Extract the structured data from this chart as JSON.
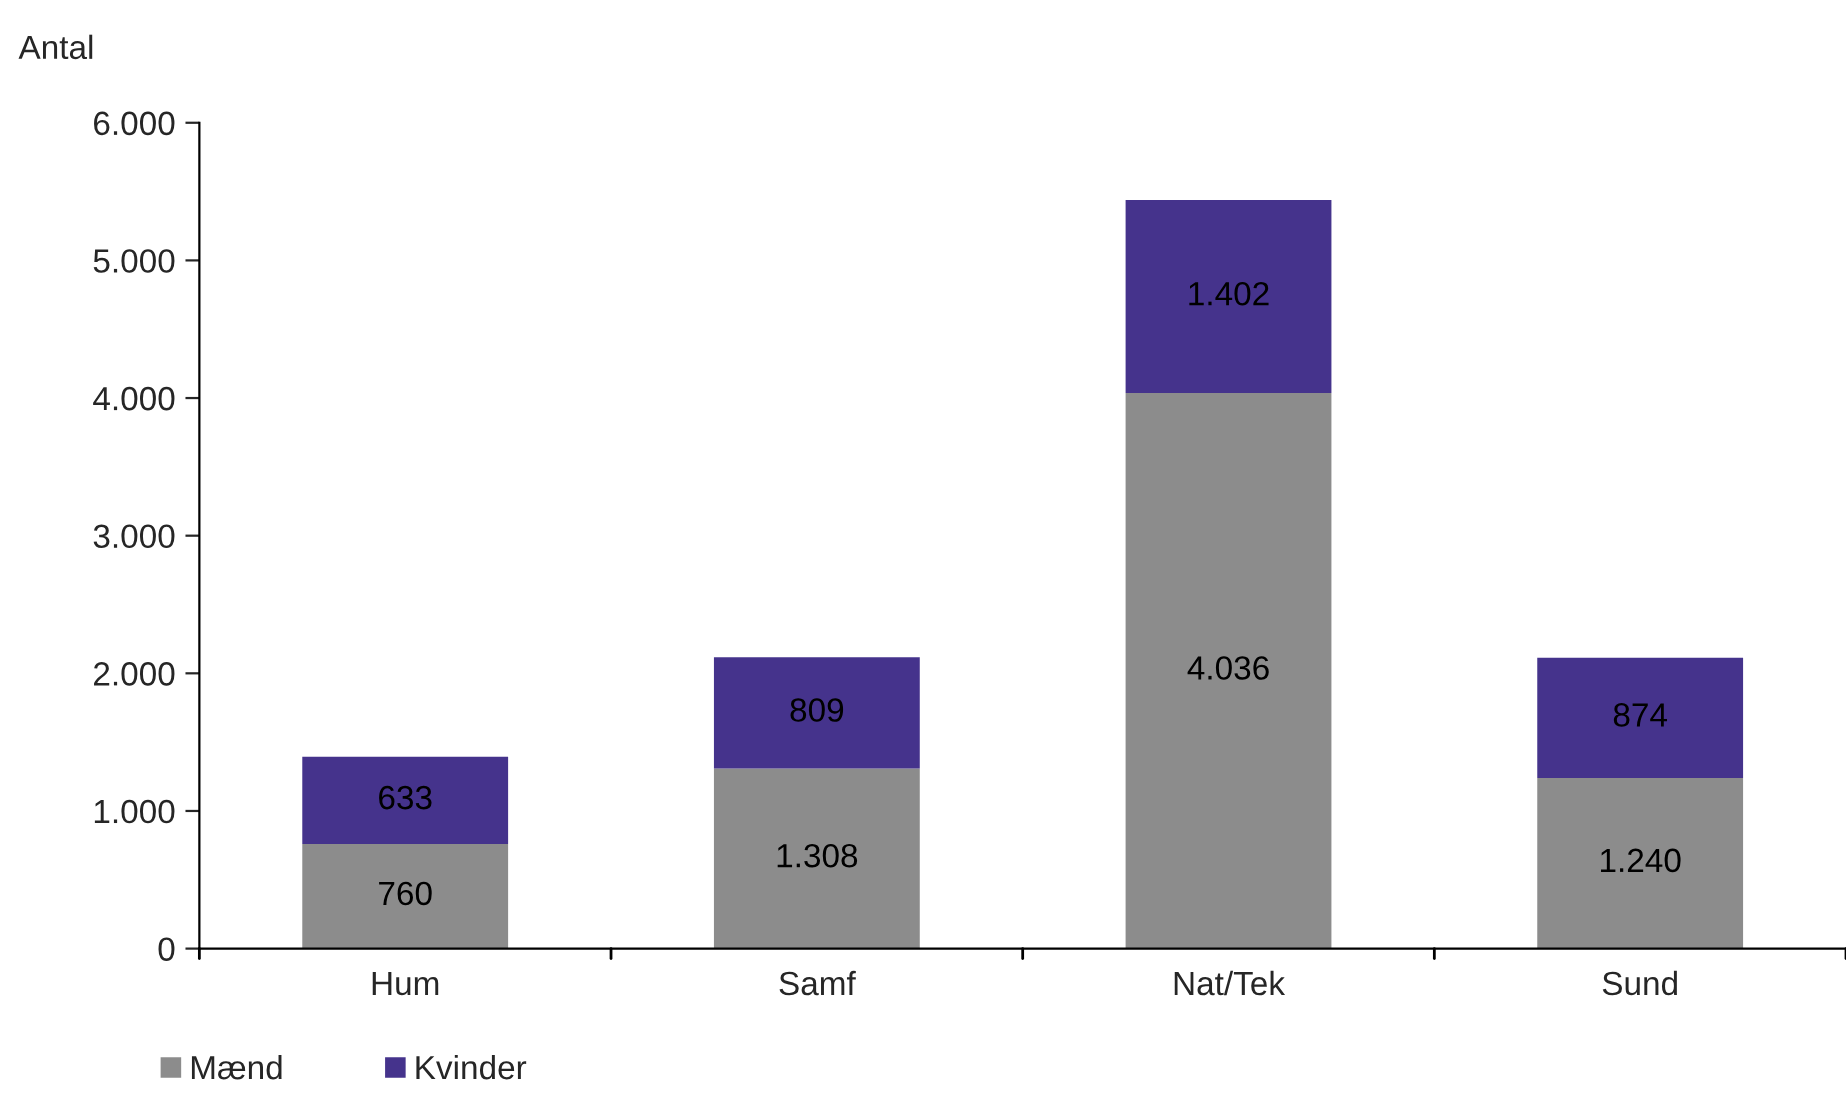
{
  "chart_data": {
    "type": "bar",
    "stacked": true,
    "ylabel": "Antal",
    "categories": [
      "Hum",
      "Samf",
      "Nat/Tek",
      "Sund"
    ],
    "series": [
      {
        "name": "Mænd",
        "color": "#8c8c8c",
        "values": [
          760,
          1308,
          4036,
          1240
        ],
        "value_labels": [
          "760",
          "1.308",
          "4.036",
          "1.240"
        ]
      },
      {
        "name": "Kvinder",
        "color": "#45338c",
        "values": [
          633,
          809,
          1402,
          874
        ],
        "value_labels": [
          "633",
          "809",
          "1.402",
          "874"
        ]
      }
    ],
    "ylim": [
      0,
      6000
    ],
    "yticks": [
      {
        "value": 0,
        "label": "0"
      },
      {
        "value": 1000,
        "label": "1.000"
      },
      {
        "value": 2000,
        "label": "2.000"
      },
      {
        "value": 3000,
        "label": "3.000"
      },
      {
        "value": 4000,
        "label": "4.000"
      },
      {
        "value": 5000,
        "label": "5.000"
      },
      {
        "value": 6000,
        "label": "6.000"
      }
    ],
    "grid": false,
    "legend": "bottom left"
  }
}
